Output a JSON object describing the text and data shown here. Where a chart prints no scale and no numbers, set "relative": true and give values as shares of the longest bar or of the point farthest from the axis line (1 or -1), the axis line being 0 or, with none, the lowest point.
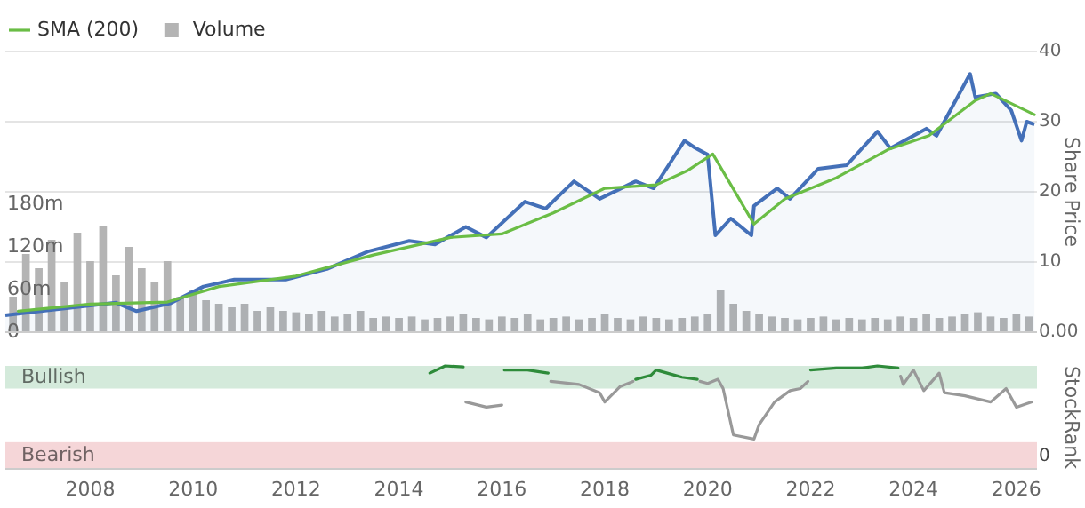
{
  "chart_data": [
    {
      "type": "line",
      "xlim": [
        2006.35,
        2026.4
      ],
      "ylim": [
        0,
        40
      ],
      "yticks": [
        {
          "value": 0,
          "label": "0.00"
        },
        10,
        20,
        30,
        40
      ],
      "y2lim": [
        0,
        395
      ],
      "y2ticks": [
        0,
        {
          "value": 60,
          "label": "60m"
        },
        {
          "value": 120,
          "label": "120m"
        },
        {
          "value": 180,
          "label": "180m"
        }
      ],
      "ylabel": "Share Price",
      "grid": "y",
      "legend": "top left",
      "tick_labels": "y",
      "series": [
        {
          "type": "line",
          "name": "SMA (200)",
          "color": "#6abd45",
          "x": [
            2006.6,
            2008,
            2009.5,
            2010.5,
            2012,
            2013.5,
            2015,
            2016,
            2017,
            2018,
            2019,
            2019.6,
            2020.1,
            2020.9,
            2021.5,
            2022.5,
            2023.5,
            2024.3,
            2025.2,
            2025.5,
            2026.35
          ],
          "values": [
            3.0,
            4.0,
            4.3,
            6.5,
            8,
            11,
            13.5,
            14,
            17,
            20.5,
            21,
            23,
            25.4,
            15.4,
            19,
            22,
            26,
            28,
            33,
            34,
            31
          ]
        },
        {
          "type": "bar",
          "name": "Volume",
          "color": "#b4b4b4",
          "axis": "y2",
          "x": [
            2006.5,
            2006.75,
            2007,
            2007.25,
            2007.5,
            2007.75,
            2008,
            2008.25,
            2008.5,
            2008.75,
            2009,
            2009.25,
            2009.5,
            2009.75,
            2010,
            2010.25,
            2010.5,
            2010.75,
            2011,
            2011.25,
            2011.5,
            2011.75,
            2012,
            2012.25,
            2012.5,
            2012.75,
            2013,
            2013.25,
            2013.5,
            2013.75,
            2014,
            2014.25,
            2014.5,
            2014.75,
            2015,
            2015.25,
            2015.5,
            2015.75,
            2016,
            2016.25,
            2016.5,
            2016.75,
            2017,
            2017.25,
            2017.5,
            2017.75,
            2018,
            2018.25,
            2018.5,
            2018.75,
            2019,
            2019.25,
            2019.5,
            2019.75,
            2020,
            2020.25,
            2020.5,
            2020.75,
            2021,
            2021.25,
            2021.5,
            2021.75,
            2022,
            2022.25,
            2022.5,
            2022.75,
            2023,
            2023.25,
            2023.5,
            2023.75,
            2024,
            2024.25,
            2024.5,
            2024.75,
            2025,
            2025.25,
            2025.5,
            2025.75,
            2026,
            2026.25
          ],
          "values": [
            50,
            110,
            90,
            130,
            70,
            140,
            100,
            150,
            80,
            120,
            90,
            70,
            100,
            50,
            60,
            45,
            40,
            35,
            40,
            30,
            35,
            30,
            28,
            25,
            30,
            22,
            25,
            30,
            20,
            22,
            20,
            22,
            18,
            20,
            22,
            25,
            20,
            18,
            22,
            20,
            25,
            18,
            20,
            22,
            18,
            20,
            25,
            20,
            18,
            22,
            20,
            18,
            20,
            22,
            25,
            60,
            40,
            30,
            25,
            22,
            20,
            18,
            20,
            22,
            18,
            20,
            18,
            20,
            18,
            22,
            20,
            25,
            20,
            22,
            25,
            28,
            22,
            20,
            25,
            22
          ]
        },
        {
          "type": "area",
          "color": "#4470b8",
          "x": [
            2006.35,
            2007.04,
            2008.5,
            2008.9,
            2009.55,
            2010.2,
            2010.8,
            2011.8,
            2012.6,
            2013.4,
            2014.2,
            2014.7,
            2015.3,
            2015.7,
            2016.45,
            2016.85,
            2017.4,
            2017.9,
            2018.6,
            2018.95,
            2019.55,
            2019.75,
            2020.0,
            2020.15,
            2020.45,
            2020.85,
            2020.9,
            2021.35,
            2021.6,
            2022.15,
            2022.7,
            2023.3,
            2023.55,
            2024.25,
            2024.45,
            2025.1,
            2025.2,
            2025.6,
            2025.9,
            2026.1,
            2026.2,
            2026.35
          ],
          "values": [
            2.4,
            3.0,
            4.2,
            3.0,
            4.1,
            6.5,
            7.5,
            7.5,
            9,
            11.5,
            13,
            12.5,
            15,
            13.5,
            18.6,
            17.6,
            21.5,
            19,
            21.5,
            20.5,
            27.3,
            26.3,
            25.3,
            13.8,
            16.2,
            13.8,
            18,
            20.5,
            19,
            23.3,
            23.8,
            28.6,
            26.2,
            29,
            28,
            36.8,
            33.5,
            34,
            31.6,
            27.3,
            30,
            29.6
          ]
        }
      ]
    },
    {
      "type": "line",
      "xlim": [
        2006.35,
        2026.4
      ],
      "xticks": [
        2008,
        2010,
        2012,
        2014,
        2016,
        2018,
        2020,
        2022,
        2024,
        2026
      ],
      "relative": true,
      "ylabel": "StockRank",
      "annotations": [
        "0"
      ],
      "bands": [
        {
          "axis": "y",
          "from": 0.78,
          "to": 1,
          "label": "Bullish",
          "color": "#d4eadb"
        },
        {
          "axis": "y",
          "from": 0,
          "to": 0.26,
          "label": "Bearish",
          "color": "#f5d6d8"
        }
      ],
      "series": [
        {
          "color": "#999999",
          "x": [
            2015.3,
            2015.7,
            2016.0
          ],
          "values": [
            0.65,
            0.6,
            0.62
          ]
        },
        {
          "color": "#999999",
          "x": [
            2016.95,
            2017.5,
            2017.9,
            2018.0,
            2018.3,
            2018.55
          ],
          "values": [
            0.85,
            0.82,
            0.74,
            0.65,
            0.8,
            0.85
          ]
        },
        {
          "color": "#999999",
          "x": [
            2019.85,
            2020.0,
            2020.2,
            2020.3,
            2020.5,
            2020.9,
            2021.0,
            2021.3,
            2021.6,
            2021.8,
            2021.95
          ],
          "values": [
            0.85,
            0.83,
            0.87,
            0.78,
            0.33,
            0.29,
            0.43,
            0.65,
            0.76,
            0.78,
            0.85
          ]
        },
        {
          "color": "#999999",
          "x": [
            2023.75,
            2023.8,
            2024.0,
            2024.2,
            2024.5,
            2024.6,
            2025.0,
            2025.5,
            2025.8,
            2026.0,
            2026.3
          ],
          "values": [
            0.9,
            0.82,
            0.96,
            0.76,
            0.93,
            0.74,
            0.71,
            0.65,
            0.78,
            0.6,
            0.65
          ]
        },
        {
          "color": "#2e8b3a",
          "x": [
            2014.6,
            2014.9,
            2015.25
          ],
          "values": [
            0.93,
            1,
            0.99
          ]
        },
        {
          "color": "#2e8b3a",
          "x": [
            2016.05,
            2016.5,
            2016.9
          ],
          "values": [
            0.96,
            0.96,
            0.93
          ]
        },
        {
          "color": "#2e8b3a",
          "x": [
            2018.6,
            2018.9,
            2019.0,
            2019.5,
            2019.8
          ],
          "values": [
            0.87,
            0.91,
            0.96,
            0.89,
            0.87
          ]
        },
        {
          "color": "#2e8b3a",
          "x": [
            2022.0,
            2022.5,
            2023.0,
            2023.3,
            2023.7
          ],
          "values": [
            0.96,
            0.98,
            0.98,
            1,
            0.98
          ]
        }
      ]
    }
  ]
}
